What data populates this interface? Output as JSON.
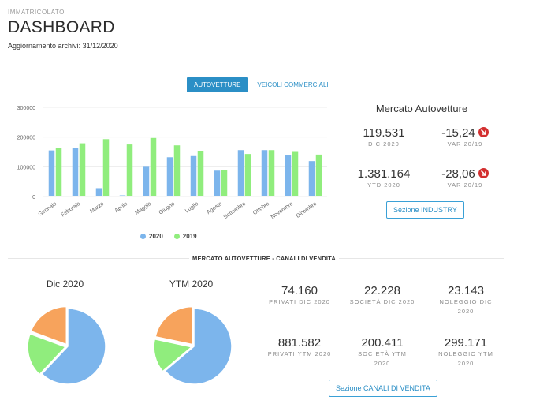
{
  "header": {
    "kicker": "IMMATRICOLATO",
    "title": "DASHBOARD",
    "updated_label": "Aggiornamento archivi:",
    "updated_date": "31/12/2020"
  },
  "tabs": [
    {
      "label": "AUTOVETTURE",
      "active": true
    },
    {
      "label": "VEICOLI COMMERCIALI",
      "active": false
    }
  ],
  "chart_data": [
    {
      "type": "bar",
      "categories": [
        "Gennaio",
        "Febbraio",
        "Marzo",
        "Aprile",
        "Maggio",
        "Giugno",
        "Luglio",
        "Agosto",
        "Settembre",
        "Ottobre",
        "Novembre",
        "Dicembre"
      ],
      "series": [
        {
          "name": "2020",
          "color": "#7cb5ec",
          "values": [
            155000,
            162000,
            28000,
            4000,
            100000,
            132000,
            136000,
            87000,
            156000,
            156000,
            138000,
            119000
          ]
        },
        {
          "name": "2019",
          "color": "#90ed7d",
          "values": [
            164000,
            179000,
            193000,
            175000,
            197000,
            172000,
            153000,
            88000,
            143000,
            156000,
            150000,
            141000
          ]
        }
      ],
      "yticks": [
        "0",
        "100000",
        "200000",
        "300000"
      ],
      "ylim": [
        0,
        300000
      ],
      "grid": true,
      "legend": "bottom"
    },
    {
      "type": "pie",
      "title": "Dic 2020",
      "slices": [
        {
          "name": "Privati",
          "value": 74160,
          "color": "#7cb5ec"
        },
        {
          "name": "Società",
          "value": 22228,
          "color": "#90ed7d"
        },
        {
          "name": "Noleggio",
          "value": 23143,
          "color": "#f7a35c"
        }
      ]
    },
    {
      "type": "pie",
      "title": "YTM 2020",
      "slices": [
        {
          "name": "Privati",
          "value": 881582,
          "color": "#7cb5ec"
        },
        {
          "name": "Società",
          "value": 200411,
          "color": "#90ed7d"
        },
        {
          "name": "Noleggio",
          "value": 299171,
          "color": "#f7a35c"
        }
      ]
    }
  ],
  "mercato": {
    "title": "Mercato Autovetture",
    "kpis": [
      {
        "value": "119.531",
        "label": "DIC 2020"
      },
      {
        "value": "-15,24",
        "label": "VAR 20/19",
        "icon": "down-arrow-icon"
      },
      {
        "value": "1.381.164",
        "label": "YTD 2020"
      },
      {
        "value": "-28,06",
        "label": "VAR 20/19",
        "icon": "down-arrow-icon"
      }
    ],
    "button_label": "Sezione INDUSTRY"
  },
  "canali": {
    "heading": "MERCATO AUTOVETTURE - CANALI DI VENDITA",
    "pie_titles": [
      "Dic 2020",
      "YTM 2020"
    ],
    "kpis": [
      {
        "value": "74.160",
        "label": "PRIVATI DIC 2020"
      },
      {
        "value": "22.228",
        "label": "SOCIETÀ DIC 2020"
      },
      {
        "value": "23.143",
        "label": "NOLEGGIO DIC 2020"
      },
      {
        "value": "881.582",
        "label": "PRIVATI YTM 2020"
      },
      {
        "value": "200.411",
        "label": "SOCIETÀ YTM 2020"
      },
      {
        "value": "299.171",
        "label": "NOLEGGIO YTM 2020"
      }
    ],
    "button_label": "Sezione CANALI DI VENDITA"
  },
  "colors": {
    "accent": "#2b8fc6",
    "series_2020": "#7cb5ec",
    "series_2019": "#90ed7d",
    "noleggio": "#f7a35c",
    "down": "#d32f2f"
  }
}
